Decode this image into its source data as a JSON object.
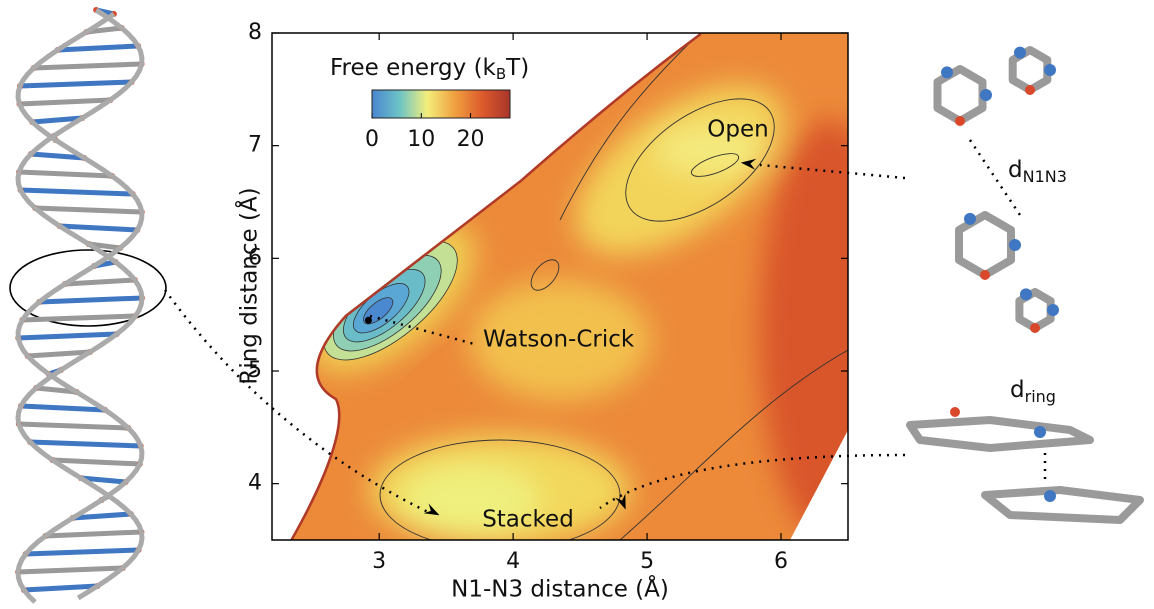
{
  "chart_data": {
    "type": "contour",
    "xlabel": "N1-N3 distance (Å)",
    "ylabel": "Ring distance (Å)",
    "xlim": [
      2.2,
      6.5
    ],
    "ylim": [
      3.5,
      8
    ],
    "xticks": [
      3,
      4,
      5,
      6
    ],
    "yticks": [
      4,
      5,
      6,
      7,
      8
    ],
    "colorbar": {
      "label_parts": [
        "Free energy (k",
        "B",
        "T)"
      ],
      "clim": [
        0,
        28
      ],
      "ticks": [
        0,
        10,
        20
      ],
      "colors": [
        "#4a86d0",
        "#6cc3c6",
        "#f4ee7c",
        "#f0a040",
        "#dc5a2c",
        "#a8362a"
      ]
    },
    "annotations": [
      {
        "text": "Watson-Crick",
        "points": [
          {
            "x": 2.92,
            "y": 5.45
          }
        ]
      },
      {
        "text": "Open",
        "points": [
          {
            "x": 5.7,
            "y": 6.85
          }
        ]
      },
      {
        "text": "Stacked",
        "points": [
          {
            "x": 3.45,
            "y": 3.72
          },
          {
            "x": 4.84,
            "y": 3.77
          }
        ]
      }
    ],
    "distance_labels": [
      {
        "base": "d",
        "sub": "N1N3"
      },
      {
        "base": "d",
        "sub": "ring"
      }
    ]
  }
}
